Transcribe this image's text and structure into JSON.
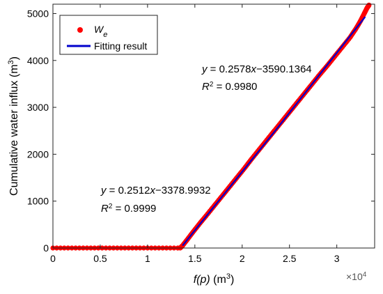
{
  "chart_data": {
    "type": "scatter",
    "xlabel": {
      "italic": "f(p)",
      "rest": " (m",
      "sup": "3",
      "close": ")"
    },
    "ylabel": {
      "main": "Cumulative water influx (m",
      "sup": "3",
      "close": ")"
    },
    "x_multiplier": {
      "base": "×10",
      "exp": "4"
    },
    "xlim": [
      0,
      3.4
    ],
    "ylim": [
      0,
      5200
    ],
    "x_unit_scale": 10000,
    "x_ticks": [
      0,
      0.5,
      1,
      1.5,
      2,
      2.5,
      3
    ],
    "x_tick_labels": [
      "0",
      "0.5",
      "1",
      "1.5",
      "2",
      "2.5",
      "3"
    ],
    "y_ticks": [
      0,
      1000,
      2000,
      3000,
      4000,
      5000
    ],
    "y_tick_labels": [
      "0",
      "1000",
      "2000",
      "3000",
      "4000",
      "5000"
    ],
    "grid": false,
    "legend": {
      "position": "top-left",
      "entries": [
        {
          "label_main": "W",
          "label_sub": "e",
          "marker": "circle",
          "color": "#ff0000"
        },
        {
          "label_main": "Fitting result",
          "label_sub": "",
          "marker": "line",
          "color": "#0000cc"
        }
      ]
    },
    "series": [
      {
        "name": "We",
        "marker": "circle",
        "color": "#ff0000",
        "points": [
          [
            0.0,
            0
          ],
          [
            0.04,
            0
          ],
          [
            0.08,
            0
          ],
          [
            0.12,
            0
          ],
          [
            0.16,
            0
          ],
          [
            0.2,
            0
          ],
          [
            0.24,
            0
          ],
          [
            0.28,
            0
          ],
          [
            0.32,
            0
          ],
          [
            0.36,
            0
          ],
          [
            0.4,
            0
          ],
          [
            0.44,
            0
          ],
          [
            0.48,
            0
          ],
          [
            0.52,
            0
          ],
          [
            0.56,
            0
          ],
          [
            0.6,
            0
          ],
          [
            0.64,
            0
          ],
          [
            0.68,
            0
          ],
          [
            0.72,
            0
          ],
          [
            0.76,
            0
          ],
          [
            0.8,
            0
          ],
          [
            0.84,
            0
          ],
          [
            0.88,
            0
          ],
          [
            0.92,
            0
          ],
          [
            0.96,
            0
          ],
          [
            1.0,
            0
          ],
          [
            1.04,
            0
          ],
          [
            1.08,
            0
          ],
          [
            1.12,
            0
          ],
          [
            1.16,
            0
          ],
          [
            1.2,
            0
          ],
          [
            1.24,
            0
          ],
          [
            1.28,
            0
          ],
          [
            1.32,
            0
          ],
          [
            1.345,
            0
          ],
          [
            1.37,
            50
          ],
          [
            1.42,
            180
          ],
          [
            1.48,
            340
          ],
          [
            1.55,
            520
          ],
          [
            1.62,
            690
          ],
          [
            1.7,
            890
          ],
          [
            1.78,
            1090
          ],
          [
            1.86,
            1290
          ],
          [
            1.94,
            1490
          ],
          [
            2.02,
            1690
          ],
          [
            2.1,
            1900
          ],
          [
            2.18,
            2100
          ],
          [
            2.26,
            2300
          ],
          [
            2.34,
            2500
          ],
          [
            2.42,
            2700
          ],
          [
            2.5,
            2900
          ],
          [
            2.58,
            3100
          ],
          [
            2.66,
            3300
          ],
          [
            2.74,
            3500
          ],
          [
            2.82,
            3700
          ],
          [
            2.9,
            3890
          ],
          [
            2.98,
            4090
          ],
          [
            3.06,
            4290
          ],
          [
            3.14,
            4490
          ],
          [
            3.2,
            4670
          ],
          [
            3.25,
            4840
          ],
          [
            3.29,
            5000
          ],
          [
            3.32,
            5120
          ],
          [
            3.34,
            5180
          ]
        ]
      },
      {
        "name": "Fitting result",
        "type": "line",
        "color": "#0000cc",
        "points": [
          [
            1.37,
            50
          ],
          [
            2.35,
            2500
          ],
          [
            3.3,
            4930
          ]
        ]
      }
    ],
    "annotations": [
      {
        "lhs": "y",
        "eq": " = 0.2512",
        "var": "x",
        "rest": "−3378.9932",
        "r_lhs": "R",
        "r_sup": "2",
        "r_val": " = 0.9999"
      },
      {
        "lhs": "y",
        "eq": " = 0.2578",
        "var": "x",
        "rest": "−3590.1364",
        "r_lhs": "R",
        "r_sup": "2",
        "r_val": " = 0.9980"
      }
    ]
  }
}
